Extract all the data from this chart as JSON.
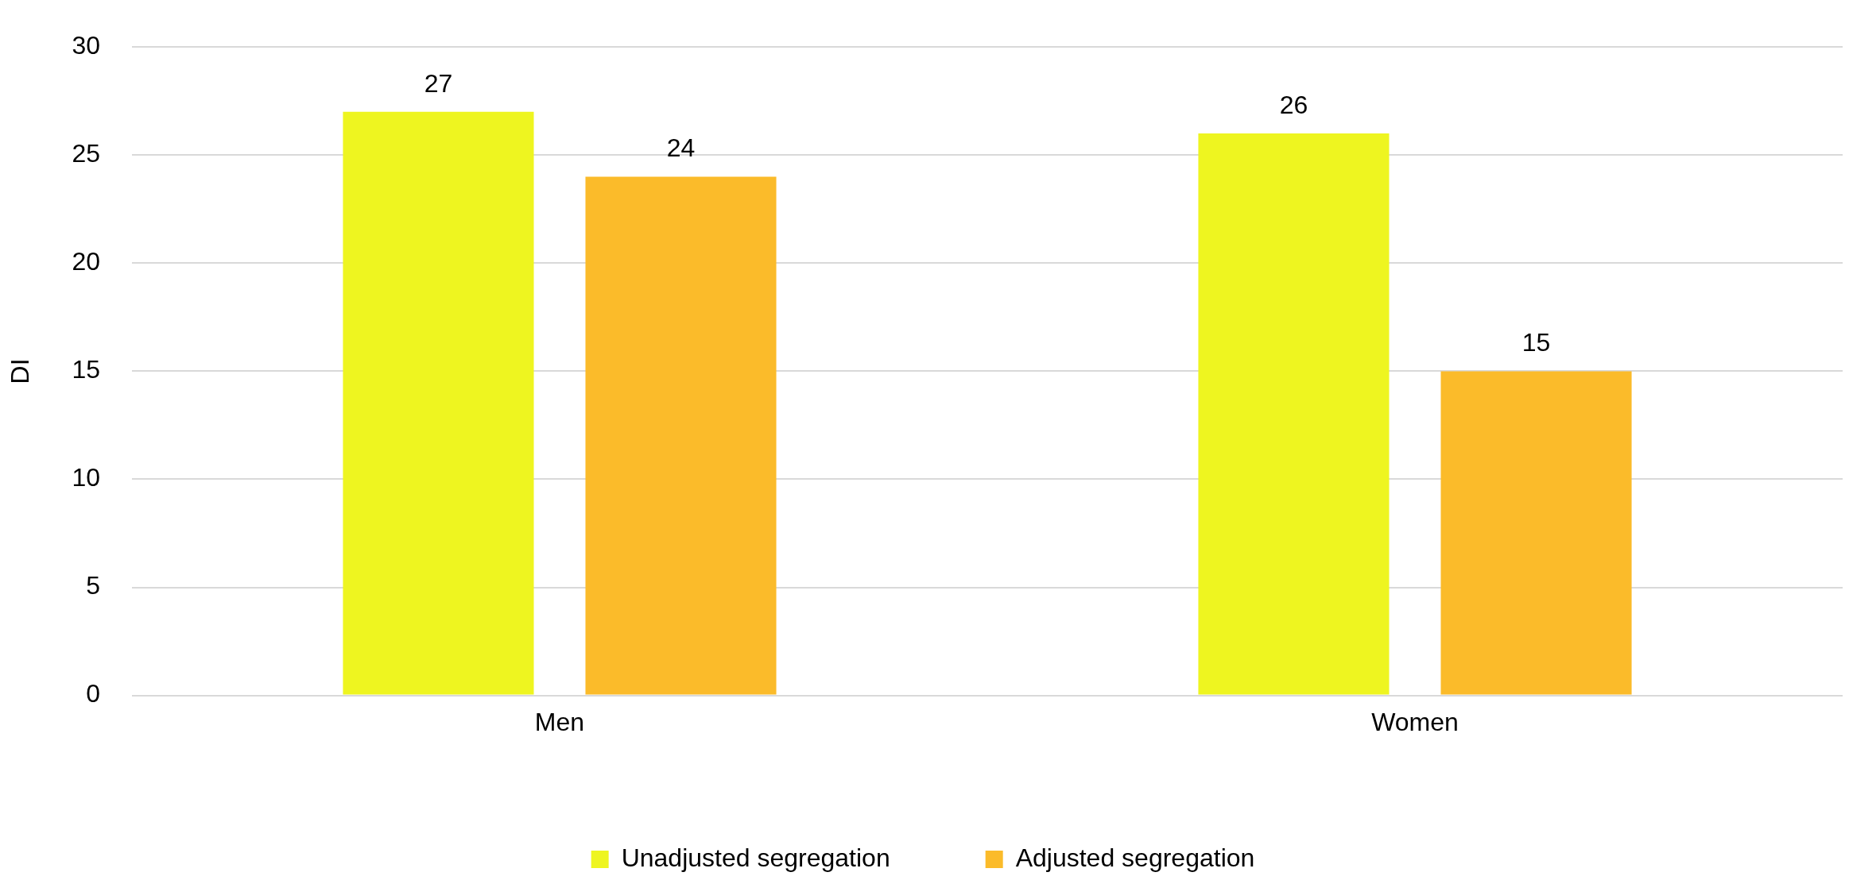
{
  "chart_data": {
    "type": "bar",
    "ylabel": "DI",
    "categories": [
      "Men",
      "Women"
    ],
    "series": [
      {
        "name": "Unadjusted segregation",
        "color": "#eef520",
        "values": [
          27,
          26
        ]
      },
      {
        "name": "Adjusted segregation",
        "color": "#fbbb2a",
        "values": [
          24,
          15
        ]
      }
    ],
    "ylim": [
      0,
      30
    ],
    "yticks": [
      0,
      5,
      10,
      15,
      20,
      25,
      30
    ],
    "grid": "y",
    "legend": "bottom",
    "data_labels": true
  }
}
